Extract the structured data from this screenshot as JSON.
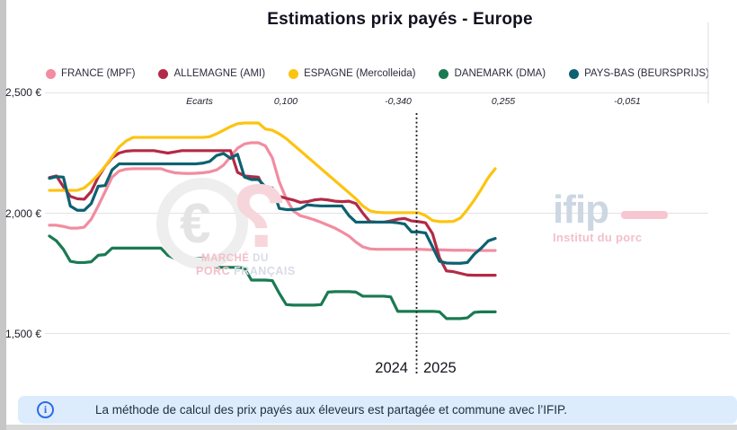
{
  "title": "Estimations prix payés - Europe",
  "y_axis": [
    "2,500 €",
    "2,000 €",
    "1,500 €"
  ],
  "years": {
    "y2024": "2024",
    "y2025": "2025"
  },
  "ecarts": {
    "label": "Ecarts",
    "values": [
      "0,100",
      "-0,340",
      "0,255",
      "-0,051"
    ]
  },
  "watermark_mpf": {
    "line1_a": "MARCHÉ",
    "line1_b": " DU",
    "line2_a": "PORC",
    "line2_b": " FRANÇAIS",
    "euro_glyph": "€"
  },
  "watermark_ifip": {
    "name": "ifip",
    "subtitle": "Institut du porc"
  },
  "info_banner": {
    "text": "La méthode de calcul des prix payés aux éleveurs est partagée et commune avec l’IFIP."
  },
  "chart_data": {
    "type": "line",
    "title": "Estimations prix payés - Europe",
    "ylabel": "€",
    "ylim": [
      1500,
      2500
    ],
    "y_ticks": [
      "2,500 €",
      "2,000 €",
      "1,500 €"
    ],
    "grid": true,
    "legend_position": "top",
    "x_axis": {
      "unit": "semaine",
      "year_labels": [
        "2024",
        "2025"
      ],
      "year_divider_style": "dotted",
      "points_per_series": 65
    },
    "series": [
      {
        "id": "france",
        "name": "FRANCE (MPF)",
        "color": "#F28CA0",
        "values": [
          1950,
          1950,
          1945,
          1938,
          1938,
          1942,
          1975,
          2030,
          2090,
          2150,
          2175,
          2183,
          2185,
          2185,
          2185,
          2185,
          2185,
          2175,
          2168,
          2166,
          2165,
          2166,
          2168,
          2172,
          2180,
          2200,
          2235,
          2270,
          2288,
          2293,
          2293,
          2280,
          2230,
          2130,
          2060,
          2010,
          1990,
          1982,
          1973,
          1962,
          1950,
          1938,
          1922,
          1905,
          1880,
          1860,
          1852,
          1850,
          1850,
          1850,
          1850,
          1850,
          1850,
          1850,
          1849,
          1848,
          1848,
          1847,
          1846,
          1846,
          1846,
          1845,
          1845,
          1845,
          1845
        ]
      },
      {
        "id": "allemagne",
        "name": "ALLEMAGNE (AMI)",
        "color": "#B32A46",
        "values": [
          2148,
          2155,
          2110,
          2070,
          2060,
          2058,
          2090,
          2150,
          2195,
          2230,
          2250,
          2258,
          2260,
          2260,
          2260,
          2260,
          2255,
          2250,
          2255,
          2260,
          2260,
          2260,
          2260,
          2260,
          2260,
          2260,
          2260,
          2170,
          2155,
          2152,
          2150,
          2090,
          2072,
          2070,
          2062,
          2055,
          2045,
          2048,
          2055,
          2058,
          2055,
          2050,
          2048,
          2050,
          2040,
          2000,
          1965,
          1963,
          1963,
          1968,
          1975,
          1978,
          1968,
          1965,
          1960,
          1915,
          1815,
          1760,
          1757,
          1750,
          1743,
          1742,
          1742,
          1742,
          1742
        ]
      },
      {
        "id": "espagne",
        "name": "ESPAGNE (Mercolleida)",
        "color": "#FDC311",
        "values": [
          2095,
          2095,
          2095,
          2095,
          2095,
          2105,
          2130,
          2160,
          2195,
          2235,
          2275,
          2300,
          2315,
          2315,
          2315,
          2315,
          2315,
          2315,
          2315,
          2315,
          2315,
          2315,
          2315,
          2318,
          2330,
          2345,
          2360,
          2372,
          2375,
          2375,
          2375,
          2350,
          2345,
          2330,
          2310,
          2285,
          2260,
          2235,
          2210,
          2185,
          2160,
          2135,
          2110,
          2085,
          2060,
          2030,
          2010,
          2004,
          2002,
          2002,
          2002,
          2002,
          2002,
          2002,
          1990,
          1970,
          1965,
          1965,
          1966,
          1980,
          2015,
          2055,
          2100,
          2148,
          2185
        ]
      },
      {
        "id": "danemark",
        "name": "DANEMARK (DMA)",
        "color": "#1A7A52",
        "values": [
          1905,
          1885,
          1850,
          1800,
          1795,
          1795,
          1798,
          1825,
          1828,
          1855,
          1855,
          1855,
          1855,
          1855,
          1855,
          1855,
          1855,
          1825,
          1812,
          1812,
          1812,
          1812,
          1812,
          1810,
          1775,
          1775,
          1775,
          1775,
          1772,
          1722,
          1722,
          1722,
          1720,
          1667,
          1620,
          1618,
          1618,
          1618,
          1618,
          1620,
          1672,
          1674,
          1674,
          1674,
          1672,
          1655,
          1655,
          1655,
          1655,
          1652,
          1592,
          1592,
          1592,
          1592,
          1592,
          1592,
          1590,
          1562,
          1562,
          1562,
          1565,
          1588,
          1590,
          1590,
          1590
        ]
      },
      {
        "id": "pays_bas",
        "name": "PAYS-BAS (BEURSPRIJS)",
        "color": "#0D6170",
        "values": [
          2145,
          2152,
          2150,
          2030,
          2012,
          2012,
          2040,
          2112,
          2115,
          2180,
          2205,
          2205,
          2205,
          2205,
          2205,
          2205,
          2205,
          2205,
          2205,
          2205,
          2205,
          2205,
          2208,
          2215,
          2240,
          2248,
          2228,
          2245,
          2150,
          2140,
          2140,
          2110,
          2105,
          2020,
          2015,
          2015,
          2018,
          2035,
          2032,
          2030,
          2030,
          2030,
          2030,
          1990,
          1963,
          1963,
          1963,
          1963,
          1963,
          1963,
          1960,
          1955,
          1922,
          1922,
          1918,
          1860,
          1800,
          1793,
          1792,
          1792,
          1795,
          1830,
          1855,
          1885,
          1895
        ]
      }
    ]
  }
}
